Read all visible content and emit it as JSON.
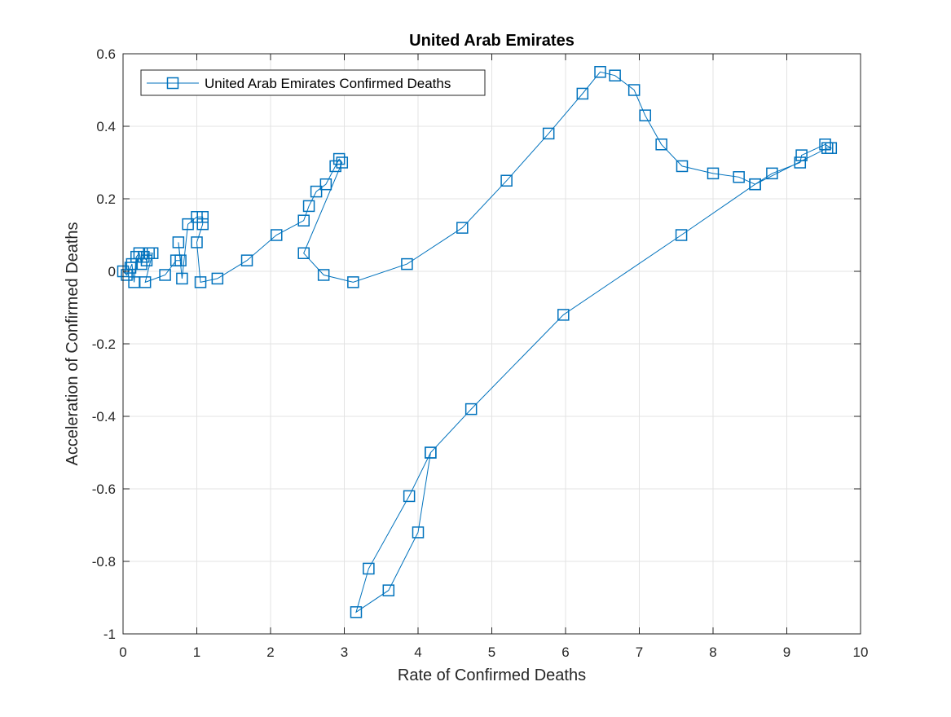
{
  "chart_data": {
    "type": "line",
    "title": "United Arab Emirates",
    "xlabel": "Rate of Confirmed Deaths",
    "ylabel": "Acceleration of Confirmed Deaths",
    "xlim": [
      0,
      10
    ],
    "ylim": [
      -1,
      0.6
    ],
    "xticks": [
      0,
      1,
      2,
      3,
      4,
      5,
      6,
      7,
      8,
      9,
      10
    ],
    "yticks": [
      -1,
      -0.8,
      -0.6,
      -0.4,
      -0.2,
      0,
      0.2,
      0.4,
      0.6
    ],
    "xtick_labels": [
      "0",
      "1",
      "2",
      "3",
      "4",
      "5",
      "6",
      "7",
      "8",
      "9",
      "10"
    ],
    "ytick_labels": [
      "-1",
      "-0.8",
      "-0.6",
      "-0.4",
      "-0.2",
      "0",
      "0.2",
      "0.4",
      "0.6"
    ],
    "grid": true,
    "legend_placement": "top-left",
    "marker": "square",
    "color": "#0072BD",
    "series": [
      {
        "name": "United Arab Emirates Confirmed Deaths",
        "points": [
          [
            0,
            0
          ],
          [
            0.05,
            -0.01
          ],
          [
            0.1,
            0.01
          ],
          [
            0.12,
            0.02
          ],
          [
            0.15,
            -0.03
          ],
          [
            0.18,
            0.04
          ],
          [
            0.22,
            0.05
          ],
          [
            0.25,
            0.02
          ],
          [
            0.28,
            0.04
          ],
          [
            0.32,
            0.03
          ],
          [
            0.35,
            0.05
          ],
          [
            0.4,
            0.05
          ],
          [
            0.3,
            -0.03
          ],
          [
            0.57,
            -0.01
          ],
          [
            0.72,
            0.03
          ],
          [
            0.78,
            0.03
          ],
          [
            0.75,
            0.08
          ],
          [
            0.8,
            -0.02
          ],
          [
            0.88,
            0.13
          ],
          [
            1.0,
            0.15
          ],
          [
            1.08,
            0.15
          ],
          [
            1.08,
            0.13
          ],
          [
            1.0,
            0.08
          ],
          [
            1.05,
            -0.03
          ],
          [
            1.28,
            -0.02
          ],
          [
            1.68,
            0.03
          ],
          [
            2.08,
            0.1
          ],
          [
            2.45,
            0.14
          ],
          [
            2.52,
            0.18
          ],
          [
            2.62,
            0.22
          ],
          [
            2.75,
            0.24
          ],
          [
            2.88,
            0.29
          ],
          [
            2.93,
            0.31
          ],
          [
            2.97,
            0.3
          ],
          [
            2.45,
            0.05
          ],
          [
            2.72,
            -0.01
          ],
          [
            3.12,
            -0.03
          ],
          [
            3.85,
            0.02
          ],
          [
            4.6,
            0.12
          ],
          [
            5.2,
            0.25
          ],
          [
            5.77,
            0.38
          ],
          [
            6.23,
            0.49
          ],
          [
            6.47,
            0.55
          ],
          [
            6.67,
            0.54
          ],
          [
            6.93,
            0.5
          ],
          [
            7.08,
            0.43
          ],
          [
            7.3,
            0.35
          ],
          [
            7.58,
            0.29
          ],
          [
            8.0,
            0.27
          ],
          [
            8.35,
            0.26
          ],
          [
            8.57,
            0.24
          ],
          [
            8.8,
            0.27
          ],
          [
            9.18,
            0.3
          ],
          [
            9.2,
            0.32
          ],
          [
            9.52,
            0.35
          ],
          [
            9.6,
            0.34
          ],
          [
            9.55,
            0.34
          ],
          [
            8.57,
            0.24
          ],
          [
            7.57,
            0.1
          ],
          [
            5.97,
            -0.12
          ],
          [
            4.72,
            -0.38
          ],
          [
            4.17,
            -0.5
          ],
          [
            3.88,
            -0.62
          ],
          [
            3.33,
            -0.82
          ],
          [
            3.16,
            -0.94
          ],
          [
            3.6,
            -0.88
          ],
          [
            4.0,
            -0.72
          ],
          [
            4.17,
            -0.5
          ]
        ]
      }
    ]
  }
}
